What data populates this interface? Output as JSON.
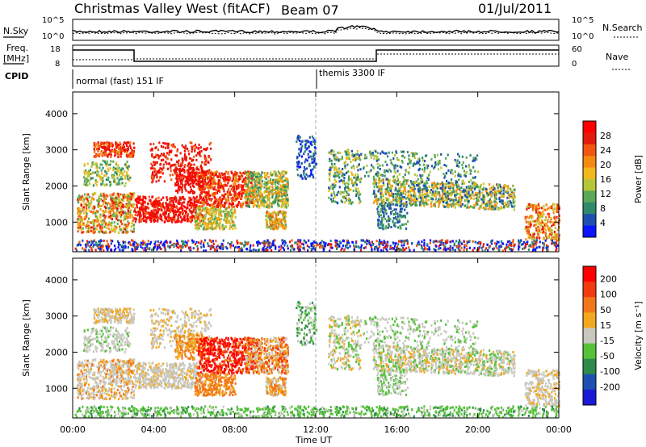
{
  "header": {
    "title": "Christmas Valley West (fitACF)",
    "beam": "Beam 07",
    "date": "01/Jul/2011"
  },
  "panels": {
    "nsky_label": "N.Sky",
    "nsearch_label": "N.Search",
    "freq_label_1": "Freq.",
    "freq_label_2": "[MHz]",
    "nave_label": "Nave",
    "cpid_label": "CPID",
    "nsky_ticks": [
      "10^5",
      "10^0"
    ],
    "nsearch_ticks": [
      "10^5",
      "10^0"
    ],
    "freq_ticks": [
      "18",
      "8"
    ],
    "nave_ticks": [
      "60",
      "0"
    ],
    "cpid_mode_1": "normal (fast) 151 IF",
    "cpid_mode_2": "themis 3300 IF"
  },
  "chart_data": [
    {
      "type": "heatmap",
      "name": "power",
      "xlabel": "Time UT",
      "ylabel": "Slant Range [km]",
      "xlim": [
        0,
        24
      ],
      "ylim": [
        180,
        4600
      ],
      "x_ticks": [
        "00:00",
        "04:00",
        "08:00",
        "12:00",
        "16:00",
        "20:00",
        "00:00"
      ],
      "y_ticks": [
        "1000",
        "2000",
        "3000",
        "4000"
      ],
      "colorbar_label": "Power [dB]",
      "colorbar_ticks": [
        "28",
        "24",
        "20",
        "16",
        "12",
        "8",
        "4"
      ],
      "colors": [
        "#0a14ff",
        "#1f4fb0",
        "#2e8a6a",
        "#5aa858",
        "#b6c63a",
        "#f1b81e",
        "#f38a12",
        "#f25510",
        "#e41a0c",
        "#ff0000"
      ]
    },
    {
      "type": "heatmap",
      "name": "velocity",
      "xlabel": "Time UT",
      "ylabel": "Slant Range [km]",
      "xlim": [
        0,
        24
      ],
      "ylim": [
        180,
        4600
      ],
      "x_ticks": [
        "00:00",
        "04:00",
        "08:00",
        "12:00",
        "16:00",
        "20:00",
        "00:00"
      ],
      "y_ticks": [
        "1000",
        "2000",
        "3000",
        "4000"
      ],
      "colorbar_label": "Velocity [m s⁻¹]",
      "colorbar_ticks": [
        "200",
        "100",
        "50",
        "15",
        "-15",
        "-50",
        "-100",
        "-200"
      ],
      "colors": [
        "#1a1ad6",
        "#1f4fb0",
        "#2e8a4a",
        "#55c23a",
        "#c8c8c0",
        "#f2a81e",
        "#f2761a",
        "#f23a10",
        "#ff0000"
      ]
    }
  ]
}
